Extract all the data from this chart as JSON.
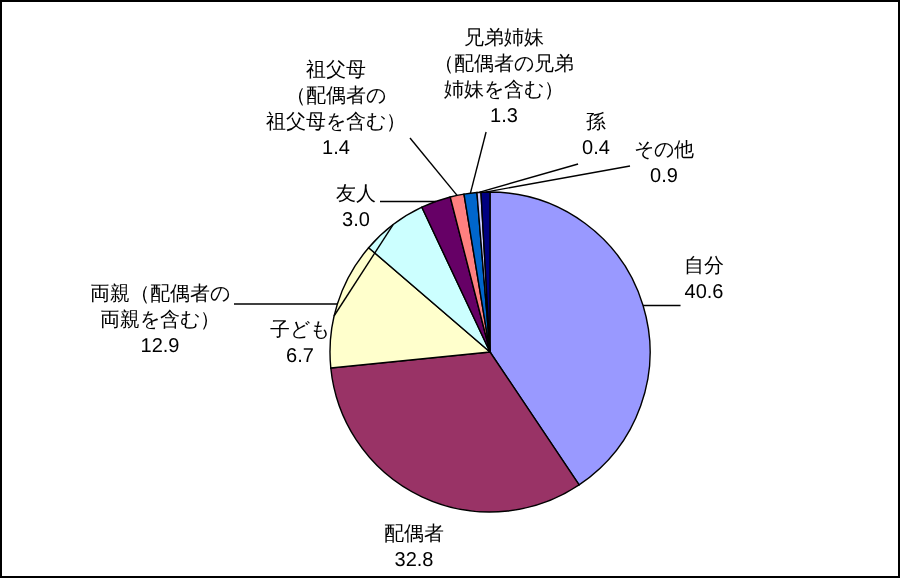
{
  "chart_data": {
    "type": "pie",
    "categories": [
      "自分",
      "配偶者",
      "両親（配偶者の両親を含む）",
      "子ども",
      "友人",
      "祖父母（配偶者の祖父母を含む）",
      "兄弟姉妹（配偶者の兄弟姉妹を含む）",
      "孫",
      "その他"
    ],
    "values": [
      40.6,
      32.8,
      12.9,
      6.7,
      3.0,
      1.4,
      1.3,
      0.4,
      0.9
    ],
    "value_labels": [
      "40.6",
      "32.8",
      "12.9",
      "6.7",
      "3.0",
      "1.4",
      "1.3",
      "0.4",
      "0.9"
    ],
    "colors": [
      "#9999ff",
      "#993366",
      "#ffffcc",
      "#ccffff",
      "#660066",
      "#ff8080",
      "#0066cc",
      "#ccccff",
      "#000080"
    ]
  }
}
